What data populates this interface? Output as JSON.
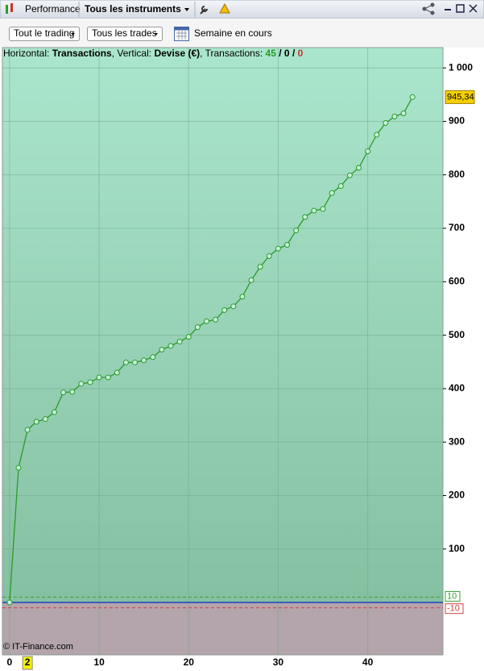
{
  "toolbar": {
    "tab": "Performance",
    "instrument": "Tous les instruments"
  },
  "filters": {
    "trading": "Tout le trading",
    "trades": "Tous les trades",
    "period": "Semaine en cours"
  },
  "info": {
    "h_label": "Horizontal:",
    "h_value": "Transactions",
    "v_label": ", Vertical:",
    "v_value": "Devise (€)",
    "t_label": ", Transactions:",
    "total": 45,
    "sep1": "/",
    "mid": 0,
    "sep2": "/",
    "neg": 0
  },
  "watermark": "© IT-Finance.com",
  "chart_data": {
    "type": "line",
    "x": [
      0,
      1,
      2,
      3,
      4,
      5,
      6,
      7,
      8,
      9,
      10,
      11,
      12,
      13,
      14,
      15,
      16,
      17,
      18,
      19,
      20,
      21,
      22,
      23,
      24,
      25,
      26,
      27,
      28,
      29,
      30,
      31,
      32,
      33,
      34,
      35,
      36,
      37,
      38,
      39,
      40,
      41,
      42,
      43,
      44,
      45
    ],
    "series": [
      {
        "name": "Devise (€)",
        "color": "#2a9a2a",
        "values": [
          0,
          252,
          323,
          338,
          343,
          356,
          393,
          394,
          409,
          412,
          421,
          421,
          430,
          449,
          449,
          453,
          459,
          473,
          480,
          488,
          497,
          515,
          526,
          529,
          547,
          554,
          572,
          603,
          628,
          648,
          662,
          669,
          696,
          721,
          733,
          736,
          766,
          779,
          799,
          813,
          844,
          875,
          897,
          909,
          915,
          945.34
        ],
        "value_labels": [
          null,
          null,
          null,
          null,
          null,
          null,
          null,
          null,
          null,
          null,
          null,
          null,
          null,
          null,
          null,
          null,
          null,
          null,
          null,
          null,
          null,
          null,
          null,
          null,
          null,
          null,
          null,
          null,
          null,
          null,
          null,
          null,
          null,
          null,
          null,
          null,
          null,
          null,
          null,
          null,
          null,
          null,
          null,
          null,
          null,
          "945,34"
        ]
      }
    ],
    "xlim": [
      -0.8,
      48.4
    ],
    "ylim": [
      -98,
      1038
    ],
    "xticks": [
      0,
      10,
      20,
      30,
      40
    ],
    "yticks": [
      {
        "value": 1000,
        "label": "1 000"
      },
      900,
      800,
      700,
      600,
      500,
      400,
      300,
      200,
      100
    ],
    "x_marker": 2,
    "upper_line": 10,
    "lower_line": -10,
    "upper_color": "#3aa03a",
    "lower_color": "#d04040",
    "zero_color": "#2040c0",
    "grid": true
  }
}
